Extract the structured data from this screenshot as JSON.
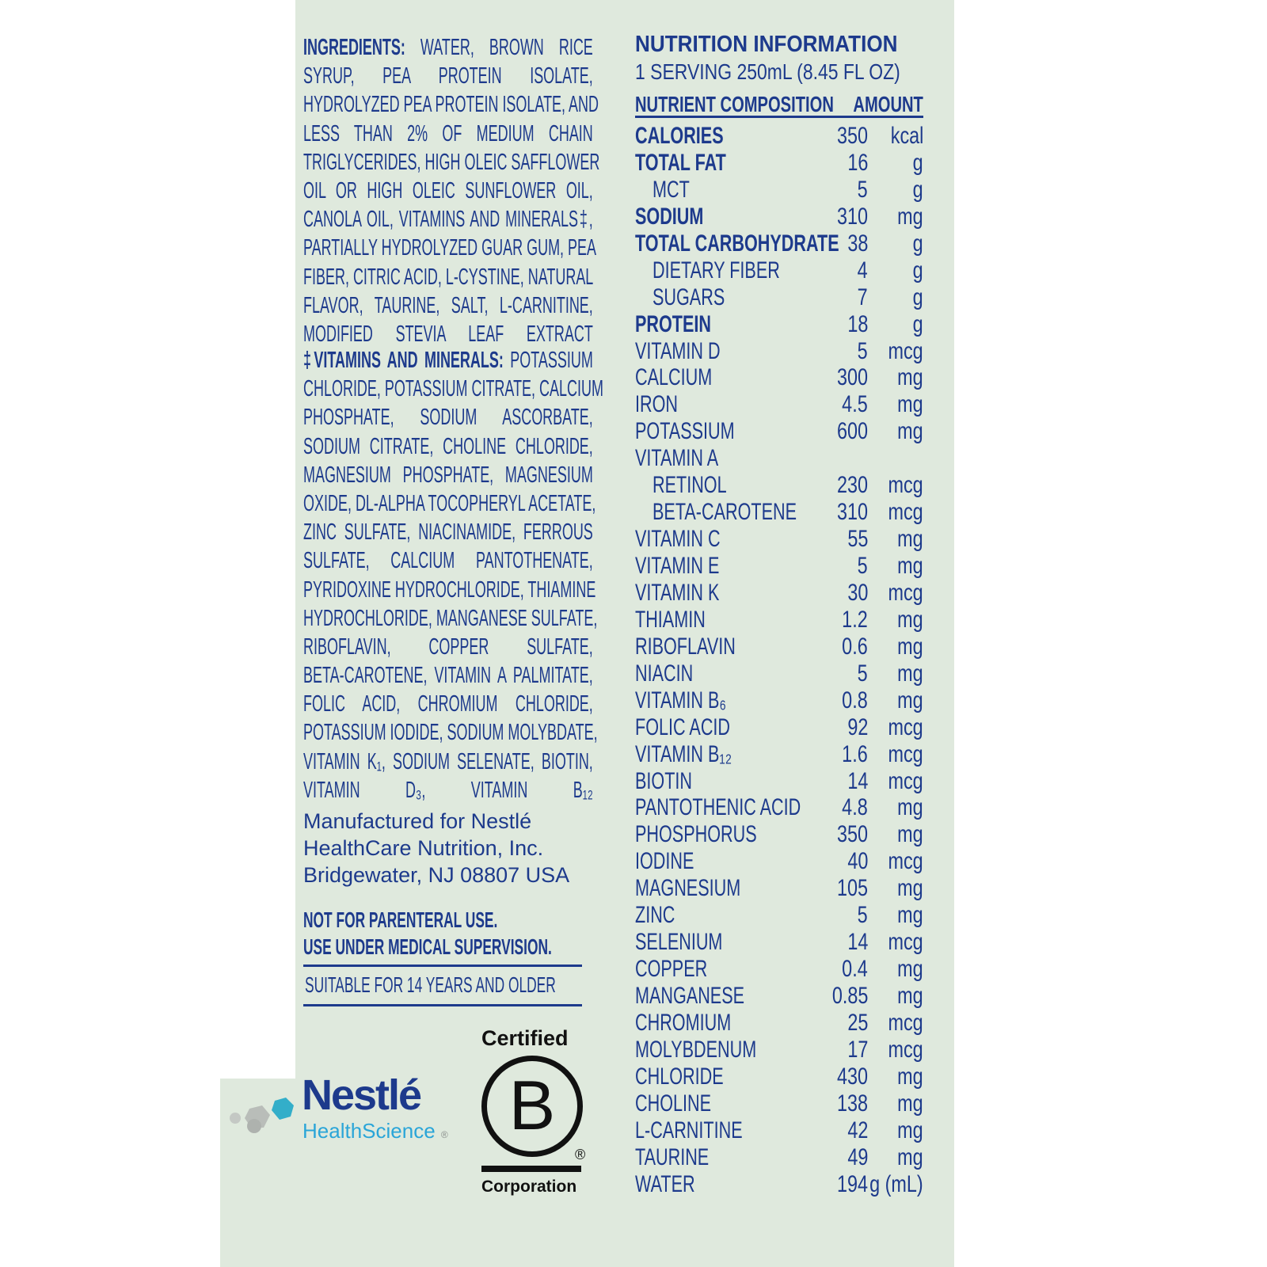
{
  "ingredients": {
    "label": "INGREDIENTS:",
    "lines": [
      "WATER, BROWN RICE",
      "SYRUP, PEA PROTEIN ISOLATE,",
      "HYDROLYZED PEA PROTEIN ISOLATE, AND",
      "LESS THAN 2% OF MEDIUM CHAIN",
      "TRIGLYCERIDES, HIGH OLEIC SAFFLOWER",
      "OIL OR HIGH OLEIC SUNFLOWER OIL,",
      "CANOLA OIL, VITAMINS AND MINERALS‡,",
      "PARTIALLY HYDROLYZED GUAR GUM, PEA",
      "FIBER, CITRIC ACID, L-CYSTINE, NATURAL",
      "FLAVOR, TAURINE, SALT, L-CARNITINE,",
      "MODIFIED STEVIA LEAF EXTRACT"
    ]
  },
  "vitamins": {
    "label": "‡VITAMINS AND MINERALS:",
    "lines": [
      "POTASSIUM",
      "CHLORIDE, POTASSIUM CITRATE, CALCIUM",
      "PHOSPHATE, SODIUM ASCORBATE,",
      "SODIUM CITRATE, CHOLINE CHLORIDE,",
      "MAGNESIUM PHOSPHATE, MAGNESIUM",
      "OXIDE, DL-ALPHA TOCOPHERYL ACETATE,",
      "ZINC SULFATE, NIACINAMIDE, FERROUS",
      "SULFATE, CALCIUM PANTOTHENATE,",
      "PYRIDOXINE HYDROCHLORIDE, THIAMINE",
      "HYDROCHLORIDE, MANGANESE SULFATE,",
      "RIBOFLAVIN, COPPER SULFATE,",
      "BETA-CAROTENE, VITAMIN A PALMITATE,",
      "FOLIC ACID, CHROMIUM CHLORIDE,",
      "POTASSIUM IODIDE, SODIUM MOLYBDATE,",
      "VITAMIN K₁, SODIUM SELENATE, BIOTIN,",
      "VITAMIN D₃, VITAMIN B₁₂"
    ]
  },
  "manufacturer": [
    "Manufactured for Nestlé",
    "HealthCare Nutrition, Inc.",
    "Bridgewater, NJ 08807 USA"
  ],
  "warnings": [
    "NOT FOR PARENTERAL USE.",
    "USE UNDER MEDICAL SUPERVISION."
  ],
  "suitability": "SUITABLE FOR 14 YEARS AND OLDER",
  "logos": {
    "nestle": "Nestlé",
    "health_science": "HealthScience",
    "bcorp_top": "Certified",
    "bcorp_letter": "B",
    "bcorp_bottom": "Corporation"
  },
  "nutrition": {
    "title": "NUTRITION INFORMATION",
    "serving": "1 SERVING 250mL (8.45 FL OZ)",
    "col_nutrient": "NUTRIENT COMPOSITION",
    "col_amount": "AMOUNT",
    "rows": [
      {
        "name": "CALORIES",
        "amount": "350",
        "unit": "kcal",
        "bold": true
      },
      {
        "name": "TOTAL FAT",
        "amount": "16",
        "unit": "g",
        "bold": true
      },
      {
        "name": "MCT",
        "amount": "5",
        "unit": "g",
        "indent": true
      },
      {
        "name": "SODIUM",
        "amount": "310",
        "unit": "mg",
        "bold": true
      },
      {
        "name": "TOTAL CARBOHYDRATE",
        "amount": "38",
        "unit": "g",
        "bold": true
      },
      {
        "name": "DIETARY FIBER",
        "amount": "4",
        "unit": "g",
        "indent": true
      },
      {
        "name": "SUGARS",
        "amount": "7",
        "unit": "g",
        "indent": true
      },
      {
        "name": "PROTEIN",
        "amount": "18",
        "unit": "g",
        "bold": true
      },
      {
        "name": "VITAMIN D",
        "amount": "5",
        "unit": "mcg"
      },
      {
        "name": "CALCIUM",
        "amount": "300",
        "unit": "mg"
      },
      {
        "name": "IRON",
        "amount": "4.5",
        "unit": "mg"
      },
      {
        "name": "POTASSIUM",
        "amount": "600",
        "unit": "mg"
      },
      {
        "name": "VITAMIN A",
        "amount": "",
        "unit": ""
      },
      {
        "name": "RETINOL",
        "amount": "230",
        "unit": "mcg",
        "indent": true
      },
      {
        "name": "BETA-CAROTENE",
        "amount": "310",
        "unit": "mcg",
        "indent": true
      },
      {
        "name": "VITAMIN C",
        "amount": "55",
        "unit": "mg"
      },
      {
        "name": "VITAMIN E",
        "amount": "5",
        "unit": "mg"
      },
      {
        "name": "VITAMIN K",
        "amount": "30",
        "unit": "mcg"
      },
      {
        "name": "THIAMIN",
        "amount": "1.2",
        "unit": "mg"
      },
      {
        "name": "RIBOFLAVIN",
        "amount": "0.6",
        "unit": "mg"
      },
      {
        "name": "NIACIN",
        "amount": "5",
        "unit": "mg"
      },
      {
        "name": "VITAMIN B₆",
        "amount": "0.8",
        "unit": "mg"
      },
      {
        "name": "FOLIC ACID",
        "amount": "92",
        "unit": "mcg"
      },
      {
        "name": "VITAMIN B₁₂",
        "amount": "1.6",
        "unit": "mcg"
      },
      {
        "name": "BIOTIN",
        "amount": "14",
        "unit": "mcg"
      },
      {
        "name": "PANTOTHENIC ACID",
        "amount": "4.8",
        "unit": "mg"
      },
      {
        "name": "PHOSPHORUS",
        "amount": "350",
        "unit": "mg"
      },
      {
        "name": "IODINE",
        "amount": "40",
        "unit": "mcg"
      },
      {
        "name": "MAGNESIUM",
        "amount": "105",
        "unit": "mg"
      },
      {
        "name": "ZINC",
        "amount": "5",
        "unit": "mg"
      },
      {
        "name": "SELENIUM",
        "amount": "14",
        "unit": "mcg"
      },
      {
        "name": "COPPER",
        "amount": "0.4",
        "unit": "mg"
      },
      {
        "name": "MANGANESE",
        "amount": "0.85",
        "unit": "mg"
      },
      {
        "name": "CHROMIUM",
        "amount": "25",
        "unit": "mcg"
      },
      {
        "name": "MOLYBDENUM",
        "amount": "17",
        "unit": "mcg"
      },
      {
        "name": "CHLORIDE",
        "amount": "430",
        "unit": "mg"
      },
      {
        "name": "CHOLINE",
        "amount": "138",
        "unit": "mg"
      },
      {
        "name": "L-CARNITINE",
        "amount": "42",
        "unit": "mg"
      },
      {
        "name": "TAURINE",
        "amount": "49",
        "unit": "mg"
      },
      {
        "name": "WATER",
        "amount": "194",
        "unit": "g (mL)"
      }
    ]
  },
  "colors": {
    "text": "#1d3a8c",
    "background": "#dfe9dd",
    "health_blue": "#2aa5d8",
    "science_gray": "#8a8f8c"
  }
}
